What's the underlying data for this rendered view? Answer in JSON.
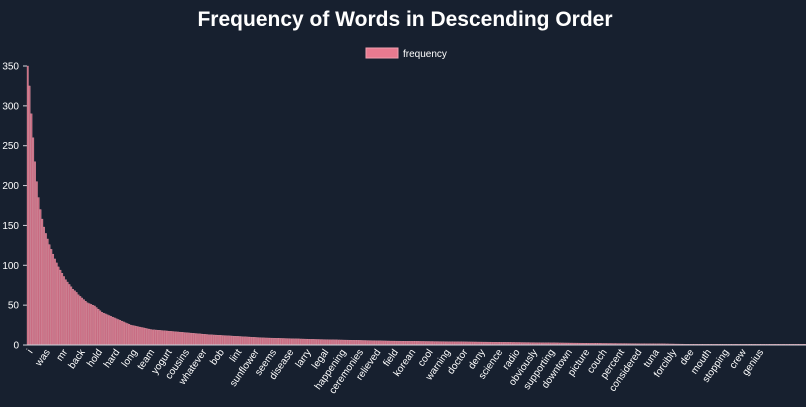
{
  "chart_data": {
    "type": "bar",
    "title": "Frequency of Words in Descending Order",
    "series": [
      {
        "name": "frequency",
        "color": "#e87a90",
        "stroke": "#f0a0b0"
      }
    ],
    "legend": "top-center",
    "ylim": [
      0,
      350
    ],
    "yticks": [
      0,
      50,
      100,
      150,
      200,
      250,
      300,
      350
    ],
    "grid": false,
    "x_tick_labels": [
      "i",
      "was",
      "mr",
      "back",
      "hold",
      "hard",
      "long",
      "team",
      "yogurt",
      "cousins",
      "whatever",
      "bob",
      "lint",
      "sunflower",
      "seems",
      "disease",
      "larry",
      "legal",
      "happening",
      "ceremonies",
      "relieved",
      "field",
      "korean",
      "cool",
      "warning",
      "doctor",
      "deny",
      "science",
      "radio",
      "obviously",
      "supporting",
      "downtown",
      "picture",
      "couch",
      "percent",
      "considered",
      "tuna",
      "forcibly",
      "dee",
      "mouth",
      "stopping",
      "crew",
      "genius"
    ],
    "labeled_every": 10,
    "total_bars": 430,
    "values_head": [
      350,
      325,
      290,
      260,
      230,
      205,
      185,
      170,
      158,
      148,
      140,
      133,
      126,
      120,
      114,
      108,
      103,
      98,
      94,
      90,
      86,
      82,
      79,
      76,
      73,
      70,
      68,
      66,
      63,
      61,
      59,
      57,
      55,
      53,
      52,
      51,
      50,
      49,
      47,
      45,
      43,
      41,
      40,
      39,
      38,
      37,
      36,
      35,
      34,
      33,
      32,
      31,
      30,
      29,
      28,
      27,
      26,
      25,
      24.5,
      24,
      23.5,
      23,
      22.5,
      22,
      21.5,
      21,
      20.5,
      20,
      19.5,
      19
    ],
    "decay_anchors": [
      [
        70,
        19
      ],
      [
        100,
        13
      ],
      [
        130,
        9
      ],
      [
        160,
        7
      ],
      [
        200,
        5
      ],
      [
        240,
        4
      ],
      [
        280,
        3
      ],
      [
        320,
        2
      ],
      [
        350,
        1.5
      ],
      [
        365,
        1
      ],
      [
        430,
        1
      ]
    ]
  },
  "colors": {
    "background": "#17202f",
    "text": "#ffffff",
    "axis": "#d0d4dc"
  }
}
